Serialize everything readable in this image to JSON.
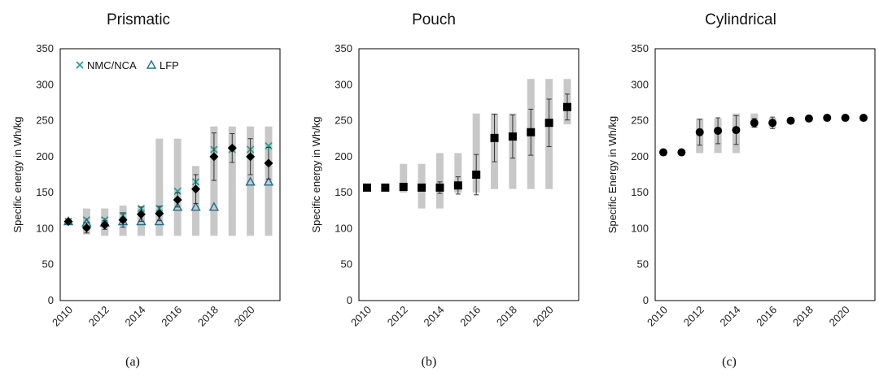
{
  "chart_data": [
    {
      "type": "scatter",
      "panel_label": "(a)",
      "title": "Prismatic",
      "ylabel": "Specific energy in Wh/kg",
      "xlabel": "",
      "ylim": [
        0,
        350
      ],
      "yticks": [
        0,
        50,
        100,
        150,
        200,
        250,
        300,
        350
      ],
      "xlim": [
        2010,
        2021
      ],
      "xticks": [
        2010,
        2012,
        2014,
        2016,
        2018,
        2020
      ],
      "grid": false,
      "legend": {
        "placement": "top-left",
        "entries": [
          "NMC/NCA",
          "LFP"
        ]
      },
      "range_bars": {
        "x": [
          2011,
          2012,
          2013,
          2014,
          2015,
          2016,
          2017,
          2018,
          2019,
          2020,
          2021
        ],
        "low": [
          92,
          90,
          90,
          90,
          90,
          90,
          90,
          90,
          90,
          90,
          90
        ],
        "high": [
          128,
          128,
          132,
          131,
          225,
          225,
          187,
          242,
          242,
          242,
          242
        ]
      },
      "series": [
        {
          "name": "NMC/NCA",
          "marker": "x",
          "color": "#2a9d8f",
          "x": [
            2010,
            2011,
            2012,
            2013,
            2014,
            2015,
            2016,
            2017,
            2018,
            2019,
            2020,
            2021
          ],
          "values": [
            110,
            112,
            112,
            118,
            128,
            128,
            152,
            165,
            210,
            210,
            210,
            215
          ]
        },
        {
          "name": "LFP",
          "marker": "triangle",
          "color": "#1f6e8c",
          "x": [
            2010,
            2011,
            2012,
            2013,
            2014,
            2015,
            2016,
            2017,
            2018,
            2020,
            2021
          ],
          "values": [
            110,
            108,
            108,
            110,
            110,
            110,
            130,
            130,
            130,
            165,
            165
          ]
        },
        {
          "name": "",
          "marker": "diamond",
          "color": "#000000",
          "x": [
            2010,
            2011,
            2012,
            2013,
            2014,
            2015,
            2016,
            2017,
            2018,
            2019,
            2020,
            2021
          ],
          "values": [
            110,
            101,
            105,
            112,
            120,
            121,
            140,
            155,
            200,
            212,
            200,
            191
          ],
          "err": [
            0,
            7,
            6,
            10,
            10,
            10,
            10,
            20,
            33,
            20,
            25,
            22
          ]
        }
      ]
    },
    {
      "type": "scatter",
      "panel_label": "(b)",
      "title": "Pouch",
      "ylabel": "Specific energy in Wh/kg",
      "xlabel": "",
      "ylim": [
        0,
        350
      ],
      "yticks": [
        0,
        50,
        100,
        150,
        200,
        250,
        300,
        350
      ],
      "xlim": [
        2010,
        2021
      ],
      "xticks": [
        2010,
        2012,
        2014,
        2016,
        2018,
        2020
      ],
      "grid": false,
      "range_bars": {
        "x": [
          2012,
          2013,
          2014,
          2015,
          2016,
          2017,
          2018,
          2019,
          2020,
          2021
        ],
        "low": [
          150,
          128,
          128,
          150,
          150,
          155,
          155,
          155,
          155,
          245
        ],
        "high": [
          190,
          190,
          205,
          205,
          260,
          260,
          260,
          308,
          308,
          308
        ]
      },
      "series": [
        {
          "name": "",
          "marker": "square",
          "color": "#000000",
          "x": [
            2010,
            2011,
            2012,
            2013,
            2014,
            2015,
            2016,
            2017,
            2018,
            2019,
            2020,
            2021
          ],
          "values": [
            157,
            157,
            158,
            157,
            157,
            160,
            175,
            226,
            228,
            234,
            247,
            269
          ],
          "err": [
            0,
            0,
            0,
            0,
            8,
            12,
            28,
            33,
            30,
            32,
            33,
            18
          ]
        }
      ]
    },
    {
      "type": "scatter",
      "panel_label": "(c)",
      "title": "Cylindrical",
      "ylabel": "Specific Energy in Wh/kg",
      "xlabel": "",
      "ylim": [
        0,
        350
      ],
      "yticks": [
        0,
        50,
        100,
        150,
        200,
        250,
        300,
        350
      ],
      "xlim": [
        2010,
        2021
      ],
      "xticks": [
        2010,
        2012,
        2014,
        2016,
        2018,
        2020
      ],
      "grid": false,
      "range_bars": {
        "x": [
          2012,
          2013,
          2014,
          2015,
          2016
        ],
        "low": [
          205,
          205,
          205,
          240,
          240
        ],
        "high": [
          253,
          253,
          260,
          260,
          254
        ]
      },
      "series": [
        {
          "name": "",
          "marker": "circle",
          "color": "#000000",
          "x": [
            2010,
            2011,
            2012,
            2013,
            2014,
            2015,
            2016,
            2017,
            2018,
            2019,
            2020,
            2021
          ],
          "values": [
            206,
            206,
            234,
            236,
            237,
            247,
            247,
            250,
            253,
            254,
            254,
            254
          ],
          "err": [
            0,
            0,
            18,
            18,
            20,
            6,
            8,
            0,
            0,
            0,
            0,
            0
          ]
        }
      ]
    }
  ]
}
